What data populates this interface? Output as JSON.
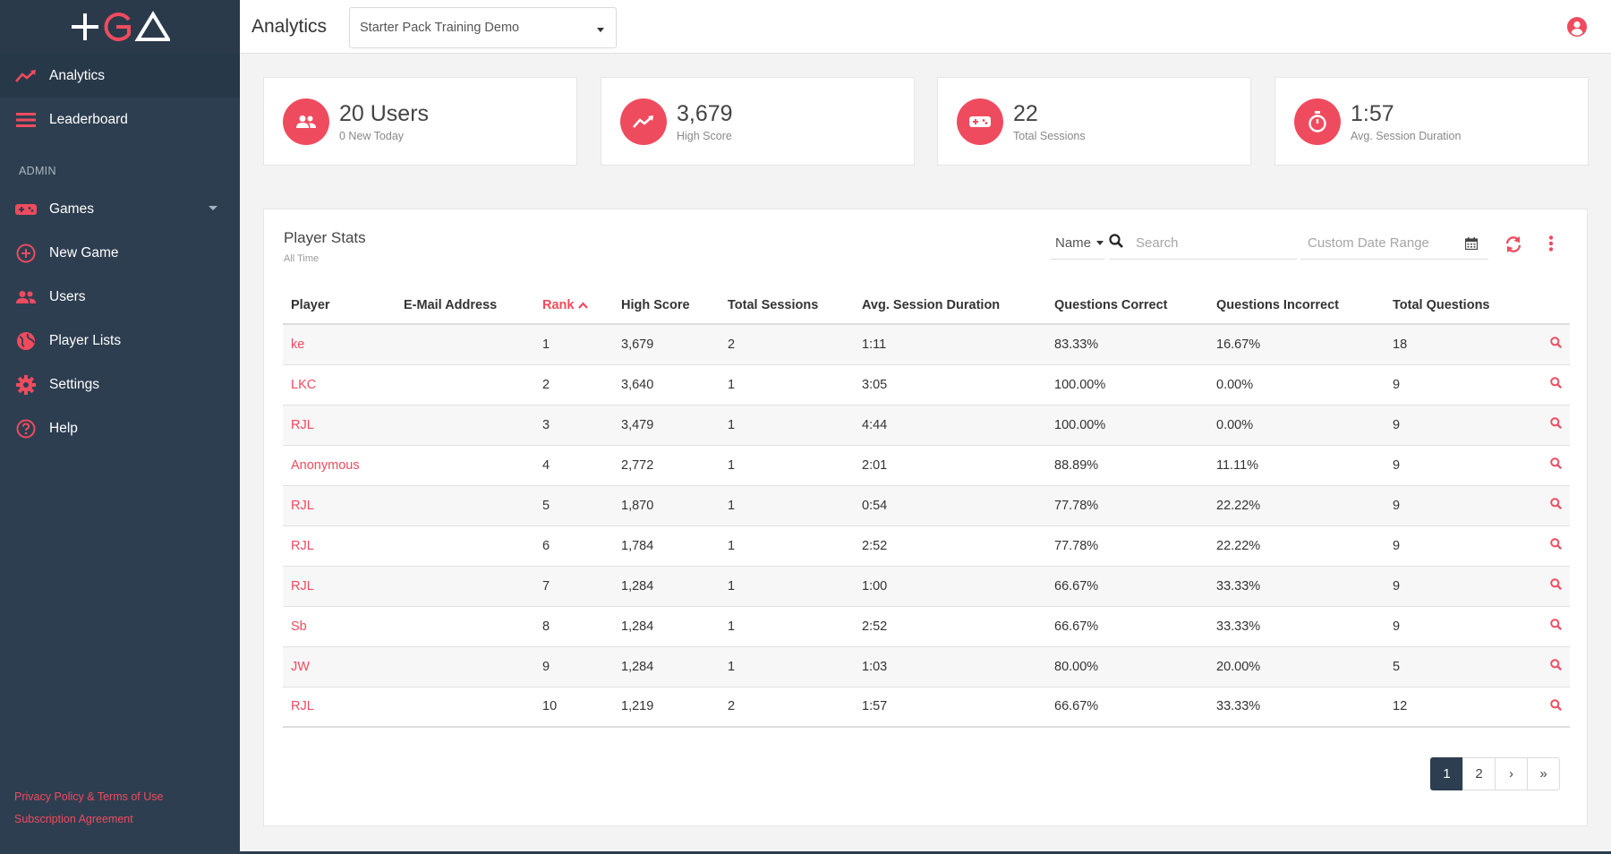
{
  "sidebar": {
    "items": [
      {
        "label": "Analytics",
        "icon": "trend-icon"
      },
      {
        "label": "Leaderboard",
        "icon": "list-icon"
      }
    ],
    "section_label": "ADMIN",
    "admin_items": [
      {
        "label": "Games",
        "icon": "gamepad-icon"
      },
      {
        "label": "New Game",
        "icon": "plus-circle-icon"
      },
      {
        "label": "Users",
        "icon": "users-icon"
      },
      {
        "label": "Player Lists",
        "icon": "globe-icon"
      },
      {
        "label": "Settings",
        "icon": "gear-icon"
      },
      {
        "label": "Help",
        "icon": "help-icon"
      }
    ],
    "footer": {
      "privacy": "Privacy Policy & Terms of Use",
      "subscription": "Subscription Agreement"
    }
  },
  "header": {
    "title": "Analytics",
    "game_select": "Starter Pack Training Demo"
  },
  "stats": [
    {
      "value": "20 Users",
      "label": "0 New Today",
      "icon": "users-icon"
    },
    {
      "value": "3,679",
      "label": "High Score",
      "icon": "trend-icon"
    },
    {
      "value": "22",
      "label": "Total Sessions",
      "icon": "gamepad-icon"
    },
    {
      "value": "1:57",
      "label": "Avg. Session Duration",
      "icon": "stopwatch-icon"
    }
  ],
  "player_stats": {
    "title": "Player Stats",
    "subtitle": "All Time",
    "sort_by": "Name",
    "search_placeholder": "Search",
    "date_placeholder": "Custom Date Range",
    "columns": [
      "Player",
      "E-Mail Address",
      "Rank",
      "High Score",
      "Total Sessions",
      "Avg. Session Duration",
      "Questions Correct",
      "Questions Incorrect",
      "Total Questions"
    ],
    "rows": [
      {
        "player": "ke",
        "email": "",
        "rank": "1",
        "high": "3,679",
        "sessions": "2",
        "duration": "1:11",
        "correct": "83.33%",
        "incorrect": "16.67%",
        "total": "18"
      },
      {
        "player": "LKC",
        "email": "",
        "rank": "2",
        "high": "3,640",
        "sessions": "1",
        "duration": "3:05",
        "correct": "100.00%",
        "incorrect": "0.00%",
        "total": "9"
      },
      {
        "player": "RJL",
        "email": "",
        "rank": "3",
        "high": "3,479",
        "sessions": "1",
        "duration": "4:44",
        "correct": "100.00%",
        "incorrect": "0.00%",
        "total": "9"
      },
      {
        "player": "Anonymous",
        "email": "",
        "rank": "4",
        "high": "2,772",
        "sessions": "1",
        "duration": "2:01",
        "correct": "88.89%",
        "incorrect": "11.11%",
        "total": "9"
      },
      {
        "player": "RJL",
        "email": "",
        "rank": "5",
        "high": "1,870",
        "sessions": "1",
        "duration": "0:54",
        "correct": "77.78%",
        "incorrect": "22.22%",
        "total": "9"
      },
      {
        "player": "RJL",
        "email": "",
        "rank": "6",
        "high": "1,784",
        "sessions": "1",
        "duration": "2:52",
        "correct": "77.78%",
        "incorrect": "22.22%",
        "total": "9"
      },
      {
        "player": "RJL",
        "email": "",
        "rank": "7",
        "high": "1,284",
        "sessions": "1",
        "duration": "1:00",
        "correct": "66.67%",
        "incorrect": "33.33%",
        "total": "9"
      },
      {
        "player": "Sb",
        "email": "",
        "rank": "8",
        "high": "1,284",
        "sessions": "1",
        "duration": "2:52",
        "correct": "66.67%",
        "incorrect": "33.33%",
        "total": "9"
      },
      {
        "player": "JW",
        "email": "",
        "rank": "9",
        "high": "1,284",
        "sessions": "1",
        "duration": "1:03",
        "correct": "80.00%",
        "incorrect": "20.00%",
        "total": "5"
      },
      {
        "player": "RJL",
        "email": "",
        "rank": "10",
        "high": "1,219",
        "sessions": "2",
        "duration": "1:57",
        "correct": "66.67%",
        "incorrect": "33.33%",
        "total": "12"
      }
    ]
  },
  "pagination": {
    "pages": [
      "1",
      "2"
    ],
    "next": "›",
    "last": "»",
    "current": "1"
  },
  "colors": {
    "accent": "#ef4b5e",
    "sidebar": "#2d3e50"
  }
}
